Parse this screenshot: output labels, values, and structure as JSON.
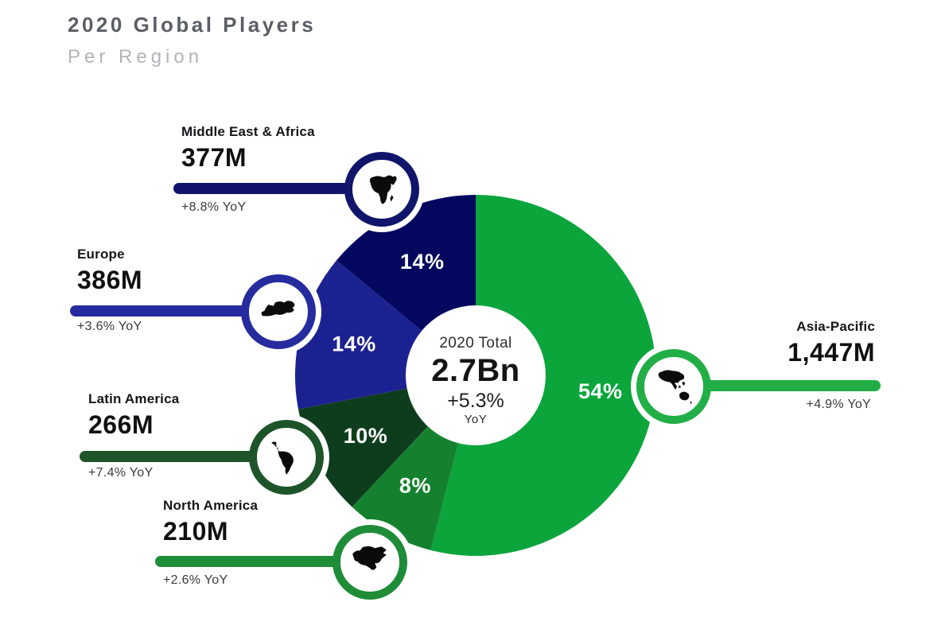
{
  "header": {
    "title": "2020 Global Players",
    "subtitle": "Per Region"
  },
  "center": {
    "label": "2020 Total",
    "total": "2.7Bn",
    "growth": "+5.3%",
    "growth_unit": "YoY"
  },
  "chart_data": {
    "type": "pie",
    "title": "2020 Global Players Per Region",
    "donut": true,
    "direction": "clockwise",
    "start_angle_deg": 0,
    "center_label": "2020 Total",
    "center_value": "2.7Bn",
    "center_yoy": "+5.3% YoY",
    "regions": [
      {
        "id": "asia-pacific",
        "label": "Asia-Pacific",
        "players_millions": 1447,
        "value_label": "1,447M",
        "share_pct": 54,
        "yoy": "+4.9% YoY",
        "slice_color": "#0ba53c",
        "accent_color": "#22ae47",
        "icon": "asia-pacific-map"
      },
      {
        "id": "north-america",
        "label": "North America",
        "players_millions": 210,
        "value_label": "210M",
        "share_pct": 8,
        "yoy": "+2.6% YoY",
        "slice_color": "#15812e",
        "accent_color": "#1f8d38",
        "icon": "north-america-map"
      },
      {
        "id": "latin-america",
        "label": "Latin America",
        "players_millions": 266,
        "value_label": "266M",
        "share_pct": 10,
        "yoy": "+7.4% YoY",
        "slice_color": "#0e3d1e",
        "accent_color": "#1d5429",
        "icon": "latin-america-map"
      },
      {
        "id": "europe",
        "label": "Europe",
        "players_millions": 386,
        "value_label": "386M",
        "share_pct": 14,
        "yoy": "+3.6% YoY",
        "slice_color": "#1c2192",
        "accent_color": "#262b9e",
        "icon": "europe-map"
      },
      {
        "id": "middle-east-africa",
        "label": "Middle East & Africa",
        "players_millions": 377,
        "value_label": "377M",
        "share_pct": 14,
        "yoy": "+8.8% YoY",
        "slice_color": "#03085e",
        "accent_color": "#10156b",
        "icon": "middle-east-africa-map"
      }
    ]
  }
}
